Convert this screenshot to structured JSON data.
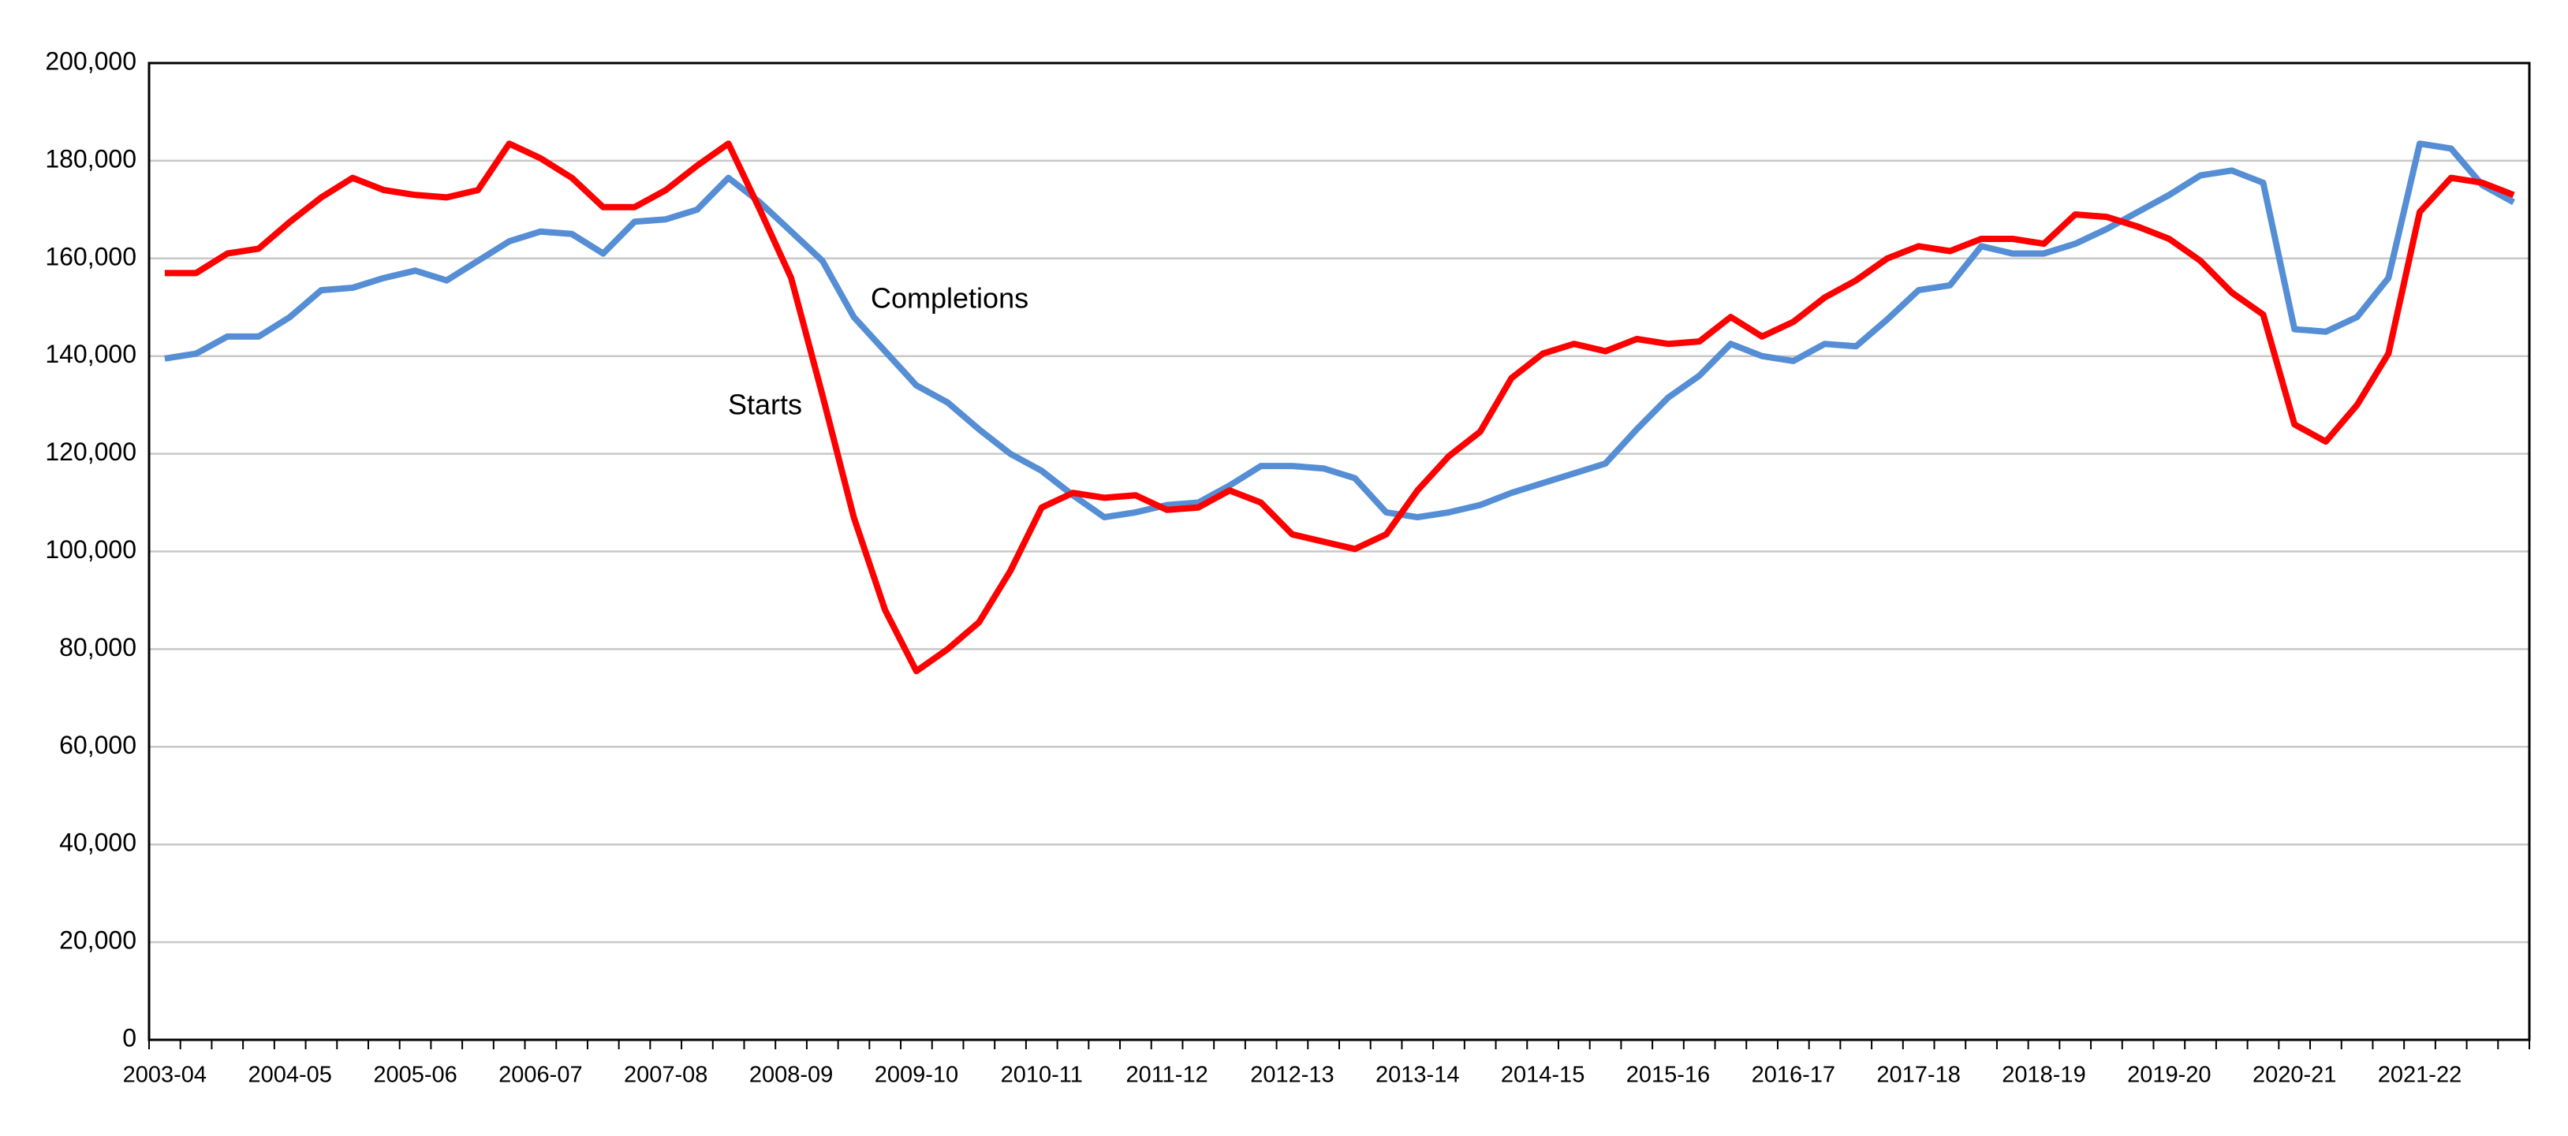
{
  "chart_data": {
    "type": "line",
    "categories": [
      "2003-04",
      null,
      null,
      null,
      "2004-05",
      null,
      null,
      null,
      "2005-06",
      null,
      null,
      null,
      "2006-07",
      null,
      null,
      null,
      "2007-08",
      null,
      null,
      null,
      "2008-09",
      null,
      null,
      null,
      "2009-10",
      null,
      null,
      null,
      "2010-11",
      null,
      null,
      null,
      "2011-12",
      null,
      null,
      null,
      "2012-13",
      null,
      null,
      null,
      "2013-14",
      null,
      null,
      null,
      "2014-15",
      null,
      null,
      null,
      "2015-16",
      null,
      null,
      null,
      "2016-17",
      null,
      null,
      null,
      "2017-18",
      null,
      null,
      null,
      "2018-19",
      null,
      null,
      null,
      "2019-20",
      null,
      null,
      null,
      "2020-21",
      null,
      null,
      null,
      "2021-22",
      null,
      null,
      null
    ],
    "series": [
      {
        "name": "Starts",
        "color": "#ff0000",
        "values": [
          157000,
          157000,
          161000,
          162000,
          167500,
          172500,
          176500,
          174000,
          173000,
          172500,
          174000,
          183500,
          180500,
          176500,
          170500,
          170500,
          174000,
          179000,
          183500,
          170000,
          156000,
          132000,
          107000,
          88000,
          75500,
          80000,
          85500,
          96000,
          109000,
          112000,
          111000,
          111500,
          108500,
          109000,
          112500,
          110000,
          103500,
          102000,
          100500,
          103500,
          112500,
          119500,
          124500,
          135500,
          140500,
          142500,
          141000,
          143500,
          142500,
          143000,
          148000,
          144000,
          147000,
          152000,
          155500,
          160000,
          162500,
          161500,
          164000,
          164000,
          163000,
          169000,
          168500,
          166500,
          164000,
          159500,
          153000,
          148500,
          126000,
          122500,
          130000,
          140500,
          169500,
          176500,
          175500,
          173000
        ]
      },
      {
        "name": "Completions",
        "color": "#558ed5",
        "values": [
          139500,
          140500,
          144000,
          144000,
          148000,
          153500,
          154000,
          156000,
          157500,
          155500,
          159500,
          163500,
          165500,
          165000,
          161000,
          167500,
          168000,
          170000,
          176500,
          171500,
          165500,
          159500,
          148000,
          141000,
          134000,
          130500,
          125000,
          120000,
          116500,
          111500,
          107000,
          108000,
          109500,
          110000,
          113500,
          117500,
          117500,
          117000,
          115000,
          108000,
          107000,
          108000,
          109500,
          112000,
          114000,
          116000,
          118000,
          125000,
          131500,
          136000,
          142500,
          140000,
          139000,
          142500,
          142000,
          147500,
          153500,
          154500,
          162500,
          161000,
          161000,
          163000,
          166000,
          169500,
          173000,
          177000,
          178000,
          175500,
          145500,
          145000,
          148000,
          156000,
          183500,
          182500,
          175000,
          171500
        ]
      }
    ],
    "ylim": [
      0,
      200000
    ],
    "yticks": [
      0,
      {
        "value": 20000,
        "label": "20,000"
      },
      {
        "value": 40000,
        "label": "40,000"
      },
      {
        "value": 60000,
        "label": "60,000"
      },
      {
        "value": 80000,
        "label": "80,000"
      },
      {
        "value": 100000,
        "label": "100,000"
      },
      {
        "value": 120000,
        "label": "120,000"
      },
      {
        "value": 140000,
        "label": "140,000"
      },
      {
        "value": 160000,
        "label": "160,000"
      },
      {
        "value": 180000,
        "label": "180,000"
      },
      {
        "value": 200000,
        "label": "200,000"
      }
    ],
    "grid": true,
    "annotations": [
      "Completions",
      "Starts"
    ]
  }
}
